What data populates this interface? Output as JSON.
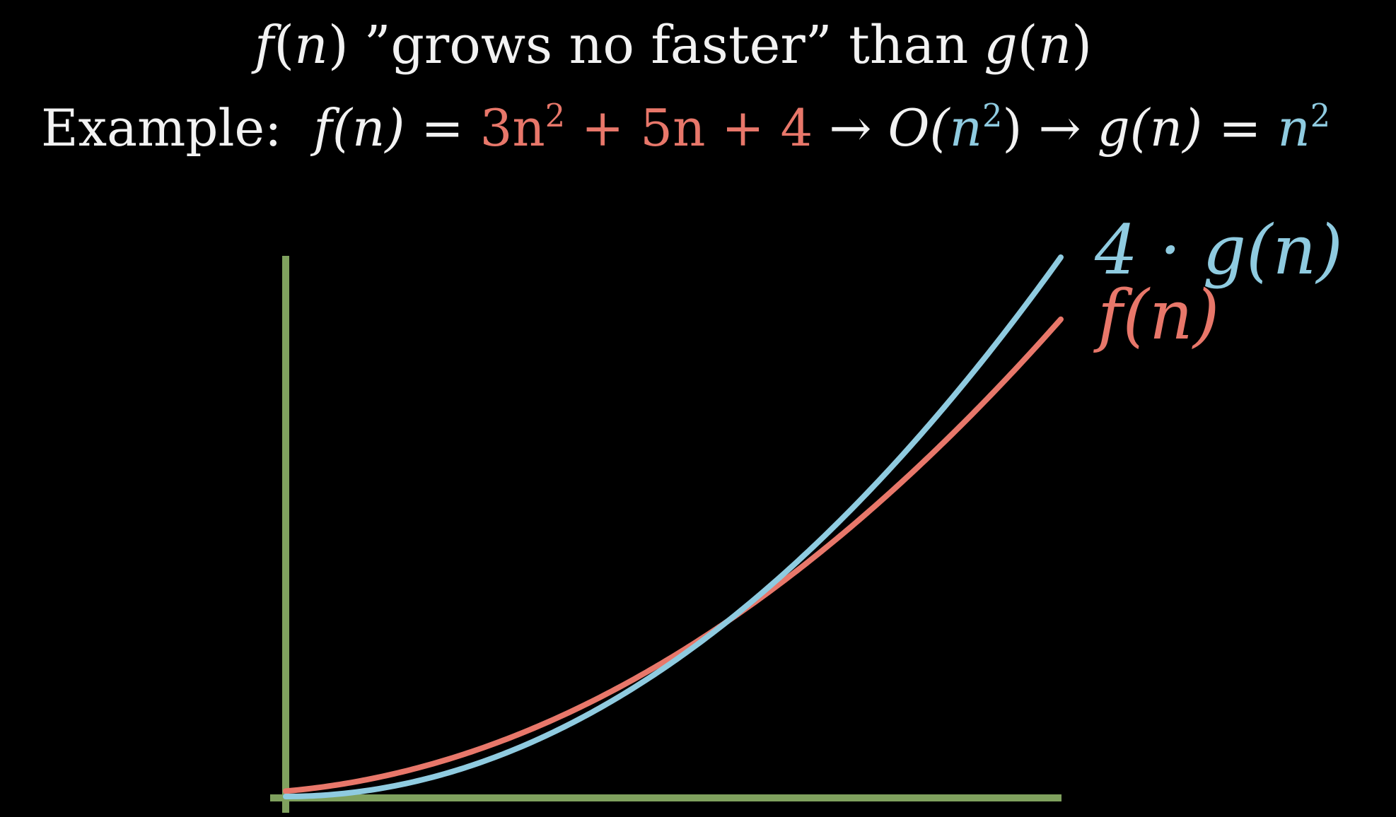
{
  "header": {
    "line1": {
      "f": "f",
      "n_open": "(",
      "n": "n",
      "n_close": ")",
      "phrase": "”grows no faster” than",
      "g": "g",
      "g_open": "(",
      "g_n": "n",
      "g_close": ")"
    },
    "line2": {
      "prefix": "Example:",
      "lhs": "f(n)",
      "eq": "=",
      "expr_a": "3n",
      "expr_a_exp": "2",
      "expr_b": " + 5n + 4",
      "arrow1": "→",
      "big_o_open": "O(",
      "big_o_arg": "n",
      "big_o_exp": "2",
      "big_o_close": ")",
      "arrow2": "→",
      "rhs_g": "g(n)",
      "eq2": "=",
      "rhs_val": "n",
      "rhs_exp": "2"
    }
  },
  "colors": {
    "f_curve": "#e8776a",
    "g_curve": "#8fcbe0",
    "axes": "#7fa15e",
    "text": "#f2f2f2",
    "background": "#000000"
  },
  "chart_data": {
    "type": "line",
    "grid": false,
    "x_range": [
      0,
      10
    ],
    "series": [
      {
        "name": "4 · g(n)",
        "formula": "4n^2",
        "color": "#8fcbe0",
        "x": [
          0,
          1,
          2,
          3,
          4,
          5,
          6,
          7,
          8,
          9,
          10
        ],
        "y": [
          0,
          4,
          16,
          36,
          64,
          100,
          144,
          196,
          256,
          324,
          400
        ]
      },
      {
        "name": "f(n)",
        "formula": "3n^2 + 5n + 4",
        "color": "#e8776a",
        "x": [
          0,
          1,
          2,
          3,
          4,
          5,
          6,
          7,
          8,
          9,
          10
        ],
        "y": [
          4,
          12,
          26,
          46,
          72,
          104,
          142,
          186,
          236,
          292,
          354
        ]
      }
    ],
    "labels": {
      "g_series": "4 · g(n)",
      "f_series": "f(n)"
    }
  }
}
